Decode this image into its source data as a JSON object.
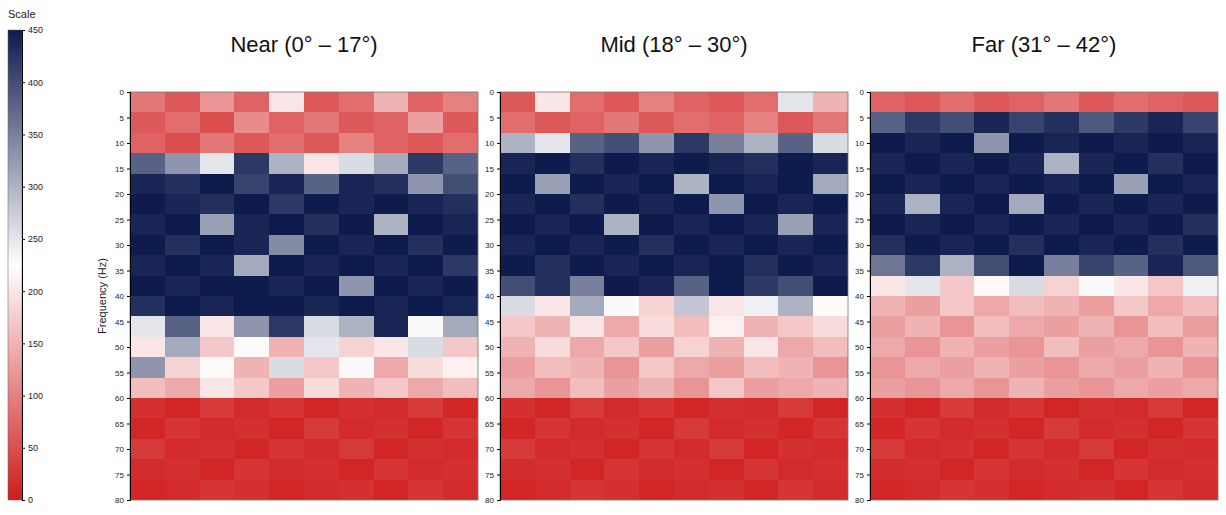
{
  "colorbar": {
    "title": "Scale",
    "range": [
      0,
      450
    ],
    "ticks": [
      0,
      50,
      100,
      150,
      200,
      250,
      300,
      350,
      400,
      450
    ],
    "colors": [
      "#d01c1c",
      "#ffffff",
      "#0d1b4d"
    ]
  },
  "chart_data": [
    {
      "type": "heatmap",
      "title": "Near (0° – 17°)",
      "ylabel": "Frequency (Hz)",
      "ylim": [
        0,
        80
      ],
      "yticks": [
        0,
        5,
        10,
        15,
        20,
        25,
        30,
        35,
        40,
        45,
        50,
        55,
        60,
        65,
        70,
        75,
        80
      ],
      "y_bins": [
        0,
        4,
        8,
        12,
        16,
        20,
        24,
        28,
        32,
        36,
        40,
        44,
        48,
        52,
        56,
        60,
        64,
        68,
        72,
        76,
        80
      ],
      "cells": [
        [
          90,
          60,
          120,
          70,
          200,
          60,
          80,
          150,
          70,
          100
        ],
        [
          60,
          80,
          50,
          110,
          70,
          90,
          60,
          70,
          130,
          60
        ],
        [
          70,
          50,
          90,
          60,
          80,
          60,
          100,
          70,
          60,
          80
        ],
        [
          380,
          330,
          250,
          420,
          300,
          200,
          260,
          310,
          420,
          380
        ],
        [
          440,
          430,
          450,
          410,
          440,
          380,
          440,
          430,
          330,
          400
        ],
        [
          450,
          440,
          430,
          450,
          420,
          450,
          440,
          450,
          440,
          430
        ],
        [
          440,
          450,
          320,
          440,
          450,
          430,
          450,
          300,
          450,
          440
        ],
        [
          450,
          430,
          450,
          440,
          340,
          450,
          440,
          450,
          430,
          450
        ],
        [
          440,
          450,
          440,
          310,
          450,
          440,
          450,
          440,
          450,
          420
        ],
        [
          450,
          440,
          450,
          450,
          440,
          450,
          330,
          450,
          440,
          450
        ],
        [
          430,
          450,
          440,
          450,
          450,
          440,
          450,
          440,
          450,
          440
        ],
        [
          250,
          380,
          200,
          330,
          420,
          260,
          300,
          440,
          230,
          310
        ],
        [
          200,
          310,
          170,
          220,
          150,
          250,
          180,
          200,
          260,
          170
        ],
        [
          330,
          180,
          220,
          150,
          260,
          170,
          230,
          140,
          190,
          210
        ],
        [
          160,
          140,
          200,
          170,
          130,
          190,
          150,
          170,
          140,
          160
        ],
        [
          20,
          10,
          30,
          15,
          25,
          10,
          20,
          15,
          30,
          10
        ],
        [
          10,
          25,
          15,
          20,
          10,
          30,
          15,
          20,
          10,
          25
        ],
        [
          30,
          15,
          20,
          10,
          25,
          15,
          30,
          10,
          20,
          15
        ],
        [
          15,
          20,
          10,
          25,
          15,
          20,
          10,
          25,
          15,
          20
        ],
        [
          10,
          15,
          25,
          20,
          10,
          15,
          20,
          10,
          25,
          15
        ]
      ]
    },
    {
      "type": "heatmap",
      "title": "Mid (18° – 30°)",
      "ylim": [
        0,
        80
      ],
      "yticks": [
        0,
        5,
        10,
        15,
        20,
        25,
        30,
        35,
        40,
        45,
        50,
        55,
        60,
        65,
        70,
        75,
        80
      ],
      "y_bins": [
        0,
        4,
        8,
        12,
        16,
        20,
        24,
        28,
        32,
        36,
        40,
        44,
        48,
        52,
        56,
        60,
        64,
        68,
        72,
        76,
        80
      ],
      "cells": [
        [
          60,
          200,
          80,
          60,
          100,
          70,
          60,
          80,
          250,
          150
        ],
        [
          80,
          60,
          70,
          90,
          60,
          80,
          70,
          100,
          60,
          90
        ],
        [
          300,
          250,
          380,
          400,
          330,
          420,
          350,
          300,
          380,
          260
        ],
        [
          440,
          450,
          430,
          450,
          440,
          450,
          440,
          430,
          450,
          440
        ],
        [
          450,
          320,
          450,
          440,
          450,
          300,
          450,
          440,
          450,
          310
        ],
        [
          440,
          450,
          430,
          450,
          440,
          450,
          330,
          450,
          440,
          450
        ],
        [
          450,
          440,
          450,
          300,
          450,
          440,
          450,
          440,
          320,
          440
        ],
        [
          440,
          450,
          440,
          450,
          430,
          450,
          440,
          450,
          440,
          450
        ],
        [
          450,
          430,
          450,
          440,
          450,
          440,
          450,
          430,
          450,
          440
        ],
        [
          400,
          430,
          350,
          450,
          440,
          380,
          450,
          420,
          400,
          450
        ],
        [
          260,
          200,
          310,
          230,
          180,
          280,
          200,
          240,
          300,
          220
        ],
        [
          170,
          150,
          200,
          140,
          190,
          160,
          210,
          150,
          170,
          190
        ],
        [
          150,
          190,
          140,
          170,
          130,
          180,
          150,
          200,
          140,
          160
        ],
        [
          130,
          160,
          150,
          120,
          170,
          140,
          130,
          160,
          150,
          120
        ],
        [
          140,
          120,
          160,
          130,
          150,
          120,
          170,
          130,
          140,
          150
        ],
        [
          20,
          10,
          30,
          15,
          25,
          10,
          20,
          15,
          30,
          10
        ],
        [
          10,
          25,
          15,
          20,
          10,
          30,
          15,
          20,
          10,
          25
        ],
        [
          30,
          15,
          20,
          10,
          25,
          15,
          30,
          10,
          20,
          15
        ],
        [
          15,
          20,
          10,
          25,
          15,
          20,
          10,
          25,
          15,
          20
        ],
        [
          10,
          15,
          25,
          20,
          10,
          15,
          20,
          10,
          25,
          15
        ]
      ]
    },
    {
      "type": "heatmap",
      "title": "Far (31° – 42°)",
      "ylim": [
        0,
        80
      ],
      "yticks": [
        0,
        5,
        10,
        15,
        20,
        25,
        30,
        35,
        40,
        45,
        50,
        55,
        60,
        65,
        70,
        75,
        80
      ],
      "y_bins": [
        0,
        4,
        8,
        12,
        16,
        20,
        24,
        28,
        32,
        36,
        40,
        44,
        48,
        52,
        56,
        60,
        64,
        68,
        72,
        76,
        80
      ],
      "cells": [
        [
          70,
          60,
          80,
          60,
          70,
          90,
          60,
          80,
          70,
          60
        ],
        [
          380,
          420,
          400,
          440,
          410,
          430,
          390,
          420,
          440,
          410
        ],
        [
          450,
          440,
          450,
          330,
          450,
          440,
          450,
          440,
          450,
          440
        ],
        [
          440,
          450,
          440,
          450,
          440,
          300,
          440,
          450,
          430,
          450
        ],
        [
          450,
          440,
          450,
          440,
          450,
          440,
          450,
          320,
          450,
          440
        ],
        [
          440,
          300,
          440,
          450,
          310,
          450,
          440,
          450,
          440,
          450
        ],
        [
          450,
          440,
          450,
          440,
          450,
          440,
          450,
          440,
          450,
          430
        ],
        [
          430,
          450,
          440,
          450,
          430,
          450,
          440,
          450,
          430,
          450
        ],
        [
          360,
          420,
          300,
          400,
          450,
          350,
          410,
          380,
          440,
          390
        ],
        [
          200,
          250,
          170,
          220,
          260,
          180,
          230,
          200,
          170,
          240
        ],
        [
          150,
          130,
          170,
          140,
          160,
          150,
          130,
          170,
          140,
          160
        ],
        [
          130,
          150,
          120,
          160,
          140,
          130,
          150,
          120,
          160,
          130
        ],
        [
          140,
          120,
          150,
          130,
          120,
          160,
          130,
          140,
          120,
          150
        ],
        [
          120,
          140,
          130,
          150,
          130,
          120,
          140,
          130,
          150,
          120
        ],
        [
          130,
          120,
          140,
          120,
          150,
          130,
          120,
          140,
          130,
          140
        ],
        [
          20,
          10,
          30,
          15,
          25,
          10,
          20,
          15,
          30,
          10
        ],
        [
          10,
          25,
          15,
          20,
          10,
          30,
          15,
          20,
          10,
          25
        ],
        [
          30,
          15,
          20,
          10,
          25,
          15,
          30,
          10,
          20,
          15
        ],
        [
          15,
          20,
          10,
          25,
          15,
          20,
          10,
          25,
          15,
          20
        ],
        [
          10,
          15,
          25,
          20,
          10,
          15,
          20,
          10,
          25,
          15
        ]
      ]
    }
  ]
}
